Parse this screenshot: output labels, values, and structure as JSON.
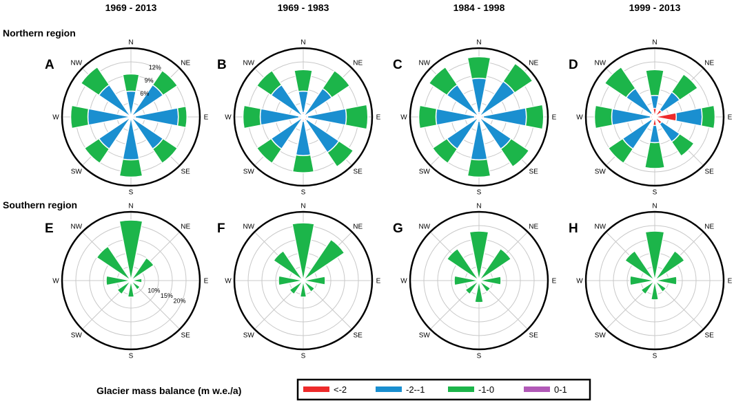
{
  "chart_data": {
    "type": "rose",
    "column_titles": [
      "1969 - 2013",
      "1969 - 1983",
      "1984 - 1998",
      "1999 - 2013"
    ],
    "row_titles": [
      "Northern region",
      "Southern region"
    ],
    "directions": [
      "N",
      "NE",
      "E",
      "SE",
      "S",
      "SW",
      "W",
      "NW"
    ],
    "legend": {
      "title": "Glacier mass balance (m w.e./a)",
      "items": [
        {
          "label": "<-2",
          "color": "#ee2b2b"
        },
        {
          "label": "-2--1",
          "color": "#1a8fd0"
        },
        {
          "label": "-1-0",
          "color": "#1cb54a"
        },
        {
          "label": "0-1",
          "color": "#b25ab8"
        }
      ]
    },
    "panels": [
      {
        "letter": "A",
        "region": "Northern region",
        "period": "1969 - 2013",
        "rmax": 16,
        "ring_labels": [
          "6%",
          "9%",
          "12%"
        ],
        "stacks": {
          "N": [
            0,
            6,
            4,
            0
          ],
          "NE": [
            0,
            9,
            4,
            0
          ],
          "E": [
            1,
            10,
            2,
            0
          ],
          "SE": [
            0,
            9,
            4,
            0
          ],
          "S": [
            0,
            10,
            4,
            0
          ],
          "SW": [
            0,
            9,
            4,
            0
          ],
          "W": [
            0,
            10,
            4,
            0
          ],
          "NW": [
            0,
            9,
            5,
            0
          ]
        }
      },
      {
        "letter": "B",
        "region": "Northern region",
        "period": "1969 - 1983",
        "rmax": 16,
        "ring_labels": [],
        "stacks": {
          "N": [
            1,
            5,
            5,
            0
          ],
          "NE": [
            0,
            8,
            5,
            0
          ],
          "E": [
            1,
            9,
            5,
            0
          ],
          "SE": [
            1,
            9,
            4,
            0
          ],
          "S": [
            1,
            8,
            4,
            0
          ],
          "SW": [
            0,
            9,
            4,
            0
          ],
          "W": [
            1,
            9,
            4,
            0
          ],
          "NW": [
            0,
            9,
            4,
            0
          ]
        }
      },
      {
        "letter": "C",
        "region": "Northern region",
        "period": "1984 - 1998",
        "rmax": 16,
        "ring_labels": [],
        "stacks": {
          "N": [
            1,
            8,
            5,
            0
          ],
          "NE": [
            0,
            10,
            5,
            0
          ],
          "E": [
            1,
            10,
            4,
            0
          ],
          "SE": [
            0,
            9,
            5,
            0
          ],
          "S": [
            1,
            9,
            4,
            0
          ],
          "SW": [
            0,
            9,
            4,
            0
          ],
          "W": [
            1,
            9,
            4,
            0
          ],
          "NW": [
            0,
            9,
            5,
            0
          ]
        }
      },
      {
        "letter": "D",
        "region": "Northern region",
        "period": "1999 - 2013",
        "rmax": 16,
        "ring_labels": [],
        "stacks": {
          "N": [
            2,
            3,
            6,
            0
          ],
          "NE": [
            2,
            5,
            5,
            0
          ],
          "E": [
            5,
            6,
            3,
            0
          ],
          "SE": [
            2,
            5,
            4,
            0
          ],
          "S": [
            2,
            4,
            6,
            0
          ],
          "SW": [
            1,
            8,
            4,
            0
          ],
          "W": [
            1,
            9,
            4,
            0
          ],
          "NW": [
            1,
            7,
            6,
            0
          ]
        }
      },
      {
        "letter": "E",
        "region": "Southern region",
        "period": "1969 - 2013",
        "rmax": 25,
        "ring_labels": [
          "10%",
          "15%",
          "20%"
        ],
        "stacks": {
          "N": [
            0,
            0,
            22,
            0
          ],
          "NE": [
            0,
            0,
            10,
            0
          ],
          "E": [
            0,
            0,
            4,
            0
          ],
          "SE": [
            0,
            0,
            4,
            0
          ],
          "S": [
            0,
            0,
            6,
            0
          ],
          "SW": [
            0,
            0,
            6,
            0
          ],
          "W": [
            0,
            0,
            9,
            0
          ],
          "NW": [
            0,
            0,
            15,
            0
          ]
        }
      },
      {
        "letter": "F",
        "region": "Southern region",
        "period": "1969 - 1983",
        "rmax": 25,
        "ring_labels": [],
        "stacks": {
          "N": [
            0,
            0,
            21,
            0
          ],
          "NE": [
            0,
            0,
            18,
            0
          ],
          "E": [
            0,
            0,
            8,
            0
          ],
          "SE": [
            0,
            0,
            5,
            0
          ],
          "S": [
            0,
            0,
            6,
            0
          ],
          "SW": [
            0,
            0,
            6,
            0
          ],
          "W": [
            0,
            0,
            9,
            0
          ],
          "NW": [
            0,
            0,
            13,
            0
          ]
        }
      },
      {
        "letter": "G",
        "region": "Southern region",
        "period": "1984 - 1998",
        "rmax": 25,
        "ring_labels": [],
        "stacks": {
          "N": [
            0,
            0,
            18,
            0
          ],
          "NE": [
            0,
            0,
            14,
            0
          ],
          "E": [
            0,
            0,
            8,
            0
          ],
          "SE": [
            0,
            0,
            5,
            0
          ],
          "S": [
            0,
            0,
            8,
            0
          ],
          "SW": [
            0,
            0,
            6,
            0
          ],
          "W": [
            0,
            0,
            9,
            0
          ],
          "NW": [
            0,
            0,
            14,
            0
          ]
        }
      },
      {
        "letter": "H",
        "region": "Southern region",
        "period": "1999 - 2013",
        "rmax": 25,
        "ring_labels": [],
        "stacks": {
          "N": [
            0,
            0,
            18,
            0
          ],
          "NE": [
            0,
            0,
            13,
            0
          ],
          "E": [
            0,
            0,
            8,
            0
          ],
          "SE": [
            0,
            0,
            5,
            0
          ],
          "S": [
            0,
            0,
            7,
            0
          ],
          "SW": [
            0,
            0,
            6,
            0
          ],
          "W": [
            0,
            0,
            9,
            0
          ],
          "NW": [
            0,
            0,
            13,
            0
          ]
        }
      }
    ]
  }
}
